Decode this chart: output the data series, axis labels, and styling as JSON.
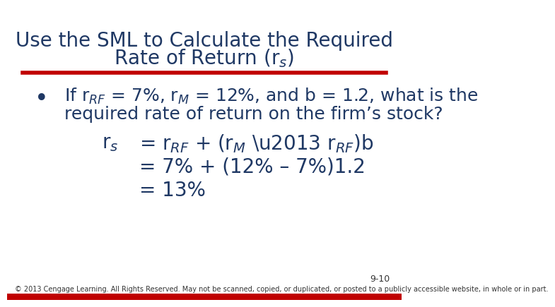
{
  "title_line1": "Use the SML to Calculate the Required",
  "title_line2": "Rate of Return (r$_s$)",
  "bg_color": "#ffffff",
  "title_color": "#1F3864",
  "body_color": "#1F3864",
  "red_line_color": "#C00000",
  "footer_bg_color": "#C00000",
  "slide_number": "9-10",
  "footer_text": "© 2013 Cengage Learning. All Rights Reserved. May not be scanned, copied, or duplicated, or posted to a publicly accessible website, in whole or in part.",
  "title_fontsize": 20,
  "body_fontsize": 18,
  "formula_fontsize": 20,
  "footer_fontsize": 7,
  "slide_num_fontsize": 9
}
